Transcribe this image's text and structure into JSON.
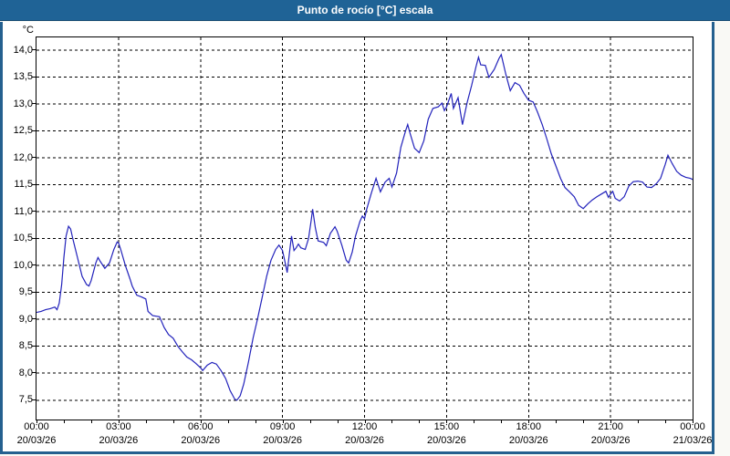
{
  "window": {
    "title": "Punto de rocío [°C] escala"
  },
  "colors": {
    "titlebar_bg": "#1f6396",
    "titlebar_text": "#ffffff",
    "window_border": "#24608f",
    "panel_bg": "#ffffff",
    "grid": "#000000",
    "axis_text": "#000000",
    "series_line": "#2222bb"
  },
  "chart_data": {
    "type": "line",
    "title": "Punto de rocío [°C] escala",
    "ylabel": "°C",
    "xlabel": "",
    "grid": "dashed",
    "legend": "none",
    "xlim_hours": [
      0,
      24
    ],
    "ylim": [
      7.14,
      14.24
    ],
    "y_ticks": [
      {
        "label": "14,0",
        "value": 14.0
      },
      {
        "label": "13,5",
        "value": 13.5
      },
      {
        "label": "13,0",
        "value": 13.0
      },
      {
        "label": "12,5",
        "value": 12.5
      },
      {
        "label": "12,0",
        "value": 12.0
      },
      {
        "label": "11,5",
        "value": 11.5
      },
      {
        "label": "11,0",
        "value": 11.0
      },
      {
        "label": "10,5",
        "value": 10.5
      },
      {
        "label": "10,0",
        "value": 10.0
      },
      {
        "label": "9,5",
        "value": 9.5
      },
      {
        "label": "9,0",
        "value": 9.0
      },
      {
        "label": "8,5",
        "value": 8.5
      },
      {
        "label": "8,0",
        "value": 8.0
      },
      {
        "label": "7,5",
        "value": 7.5
      }
    ],
    "x_ticks": [
      {
        "hour": 0,
        "time": "00:00",
        "date": "20/03/26"
      },
      {
        "hour": 3,
        "time": "03:00",
        "date": "20/03/26"
      },
      {
        "hour": 6,
        "time": "06:00",
        "date": "20/03/26"
      },
      {
        "hour": 9,
        "time": "09:00",
        "date": "20/03/26"
      },
      {
        "hour": 12,
        "time": "12:00",
        "date": "20/03/26"
      },
      {
        "hour": 15,
        "time": "15:00",
        "date": "20/03/26"
      },
      {
        "hour": 18,
        "time": "18:00",
        "date": "20/03/26"
      },
      {
        "hour": 21,
        "time": "21:00",
        "date": "20/03/26"
      },
      {
        "hour": 24,
        "time": "00:00",
        "date": "21/03/26"
      }
    ],
    "minor_x_tick_every_hours": 1,
    "series": [
      {
        "name": "Punto de rocío",
        "color": "#2222bb",
        "points": [
          [
            0.0,
            9.13
          ],
          [
            0.17,
            9.15
          ],
          [
            0.33,
            9.18
          ],
          [
            0.5,
            9.2
          ],
          [
            0.67,
            9.23
          ],
          [
            0.75,
            9.18
          ],
          [
            0.83,
            9.3
          ],
          [
            0.92,
            9.65
          ],
          [
            1.0,
            10.15
          ],
          [
            1.08,
            10.55
          ],
          [
            1.17,
            10.73
          ],
          [
            1.25,
            10.68
          ],
          [
            1.33,
            10.5
          ],
          [
            1.5,
            10.15
          ],
          [
            1.67,
            9.8
          ],
          [
            1.83,
            9.65
          ],
          [
            1.92,
            9.62
          ],
          [
            2.0,
            9.72
          ],
          [
            2.17,
            10.05
          ],
          [
            2.25,
            10.15
          ],
          [
            2.33,
            10.08
          ],
          [
            2.5,
            9.95
          ],
          [
            2.67,
            10.05
          ],
          [
            2.83,
            10.3
          ],
          [
            2.95,
            10.44
          ],
          [
            3.0,
            10.42
          ],
          [
            3.08,
            10.3
          ],
          [
            3.25,
            10.0
          ],
          [
            3.42,
            9.75
          ],
          [
            3.5,
            9.62
          ],
          [
            3.67,
            9.45
          ],
          [
            3.83,
            9.42
          ],
          [
            4.0,
            9.38
          ],
          [
            4.08,
            9.15
          ],
          [
            4.25,
            9.07
          ],
          [
            4.5,
            9.05
          ],
          [
            4.67,
            8.85
          ],
          [
            4.83,
            8.72
          ],
          [
            5.0,
            8.65
          ],
          [
            5.17,
            8.5
          ],
          [
            5.33,
            8.4
          ],
          [
            5.5,
            8.3
          ],
          [
            5.67,
            8.25
          ],
          [
            5.83,
            8.18
          ],
          [
            6.0,
            8.1
          ],
          [
            6.08,
            8.05
          ],
          [
            6.25,
            8.15
          ],
          [
            6.42,
            8.2
          ],
          [
            6.58,
            8.17
          ],
          [
            6.75,
            8.05
          ],
          [
            6.92,
            7.9
          ],
          [
            7.08,
            7.68
          ],
          [
            7.25,
            7.52
          ],
          [
            7.33,
            7.5
          ],
          [
            7.45,
            7.58
          ],
          [
            7.58,
            7.8
          ],
          [
            7.75,
            8.2
          ],
          [
            7.92,
            8.65
          ],
          [
            8.08,
            9.0
          ],
          [
            8.25,
            9.4
          ],
          [
            8.42,
            9.8
          ],
          [
            8.58,
            10.1
          ],
          [
            8.75,
            10.3
          ],
          [
            8.87,
            10.38
          ],
          [
            9.0,
            10.28
          ],
          [
            9.12,
            10.0
          ],
          [
            9.17,
            9.87
          ],
          [
            9.28,
            10.35
          ],
          [
            9.33,
            10.55
          ],
          [
            9.42,
            10.28
          ],
          [
            9.5,
            10.33
          ],
          [
            9.58,
            10.4
          ],
          [
            9.67,
            10.33
          ],
          [
            9.83,
            10.3
          ],
          [
            9.95,
            10.5
          ],
          [
            10.05,
            10.85
          ],
          [
            10.1,
            11.05
          ],
          [
            10.2,
            10.7
          ],
          [
            10.3,
            10.46
          ],
          [
            10.5,
            10.43
          ],
          [
            10.6,
            10.37
          ],
          [
            10.75,
            10.6
          ],
          [
            10.92,
            10.72
          ],
          [
            11.0,
            10.64
          ],
          [
            11.17,
            10.38
          ],
          [
            11.33,
            10.1
          ],
          [
            11.42,
            10.05
          ],
          [
            11.55,
            10.25
          ],
          [
            11.67,
            10.55
          ],
          [
            11.83,
            10.82
          ],
          [
            11.92,
            10.92
          ],
          [
            12.0,
            10.87
          ],
          [
            12.08,
            11.05
          ],
          [
            12.25,
            11.35
          ],
          [
            12.42,
            11.62
          ],
          [
            12.58,
            11.37
          ],
          [
            12.75,
            11.55
          ],
          [
            12.9,
            11.62
          ],
          [
            13.0,
            11.46
          ],
          [
            13.17,
            11.72
          ],
          [
            13.33,
            12.2
          ],
          [
            13.5,
            12.5
          ],
          [
            13.58,
            12.62
          ],
          [
            13.67,
            12.45
          ],
          [
            13.83,
            12.18
          ],
          [
            14.0,
            12.1
          ],
          [
            14.17,
            12.32
          ],
          [
            14.33,
            12.72
          ],
          [
            14.5,
            12.92
          ],
          [
            14.7,
            12.95
          ],
          [
            14.83,
            13.02
          ],
          [
            14.92,
            12.88
          ],
          [
            15.0,
            12.95
          ],
          [
            15.17,
            13.2
          ],
          [
            15.25,
            12.92
          ],
          [
            15.42,
            13.12
          ],
          [
            15.58,
            12.62
          ],
          [
            15.75,
            13.02
          ],
          [
            15.92,
            13.35
          ],
          [
            16.08,
            13.7
          ],
          [
            16.17,
            13.87
          ],
          [
            16.25,
            13.73
          ],
          [
            16.42,
            13.72
          ],
          [
            16.55,
            13.5
          ],
          [
            16.75,
            13.65
          ],
          [
            16.92,
            13.85
          ],
          [
            17.0,
            13.92
          ],
          [
            17.17,
            13.55
          ],
          [
            17.33,
            13.25
          ],
          [
            17.5,
            13.4
          ],
          [
            17.67,
            13.35
          ],
          [
            17.83,
            13.2
          ],
          [
            18.0,
            13.07
          ],
          [
            18.17,
            13.04
          ],
          [
            18.33,
            12.85
          ],
          [
            18.5,
            12.62
          ],
          [
            18.67,
            12.35
          ],
          [
            18.83,
            12.08
          ],
          [
            19.0,
            11.85
          ],
          [
            19.17,
            11.62
          ],
          [
            19.33,
            11.45
          ],
          [
            19.5,
            11.37
          ],
          [
            19.67,
            11.28
          ],
          [
            19.83,
            11.12
          ],
          [
            20.0,
            11.06
          ],
          [
            20.17,
            11.15
          ],
          [
            20.33,
            11.22
          ],
          [
            20.5,
            11.28
          ],
          [
            20.67,
            11.33
          ],
          [
            20.83,
            11.38
          ],
          [
            20.92,
            11.27
          ],
          [
            21.0,
            11.33
          ],
          [
            21.08,
            11.38
          ],
          [
            21.17,
            11.25
          ],
          [
            21.33,
            11.2
          ],
          [
            21.5,
            11.28
          ],
          [
            21.67,
            11.48
          ],
          [
            21.83,
            11.56
          ],
          [
            22.0,
            11.57
          ],
          [
            22.17,
            11.55
          ],
          [
            22.33,
            11.46
          ],
          [
            22.5,
            11.45
          ],
          [
            22.67,
            11.52
          ],
          [
            22.83,
            11.62
          ],
          [
            23.0,
            11.88
          ],
          [
            23.1,
            12.05
          ],
          [
            23.25,
            11.9
          ],
          [
            23.42,
            11.75
          ],
          [
            23.58,
            11.68
          ],
          [
            23.75,
            11.64
          ],
          [
            23.92,
            11.62
          ],
          [
            24.0,
            11.6
          ]
        ]
      }
    ]
  }
}
